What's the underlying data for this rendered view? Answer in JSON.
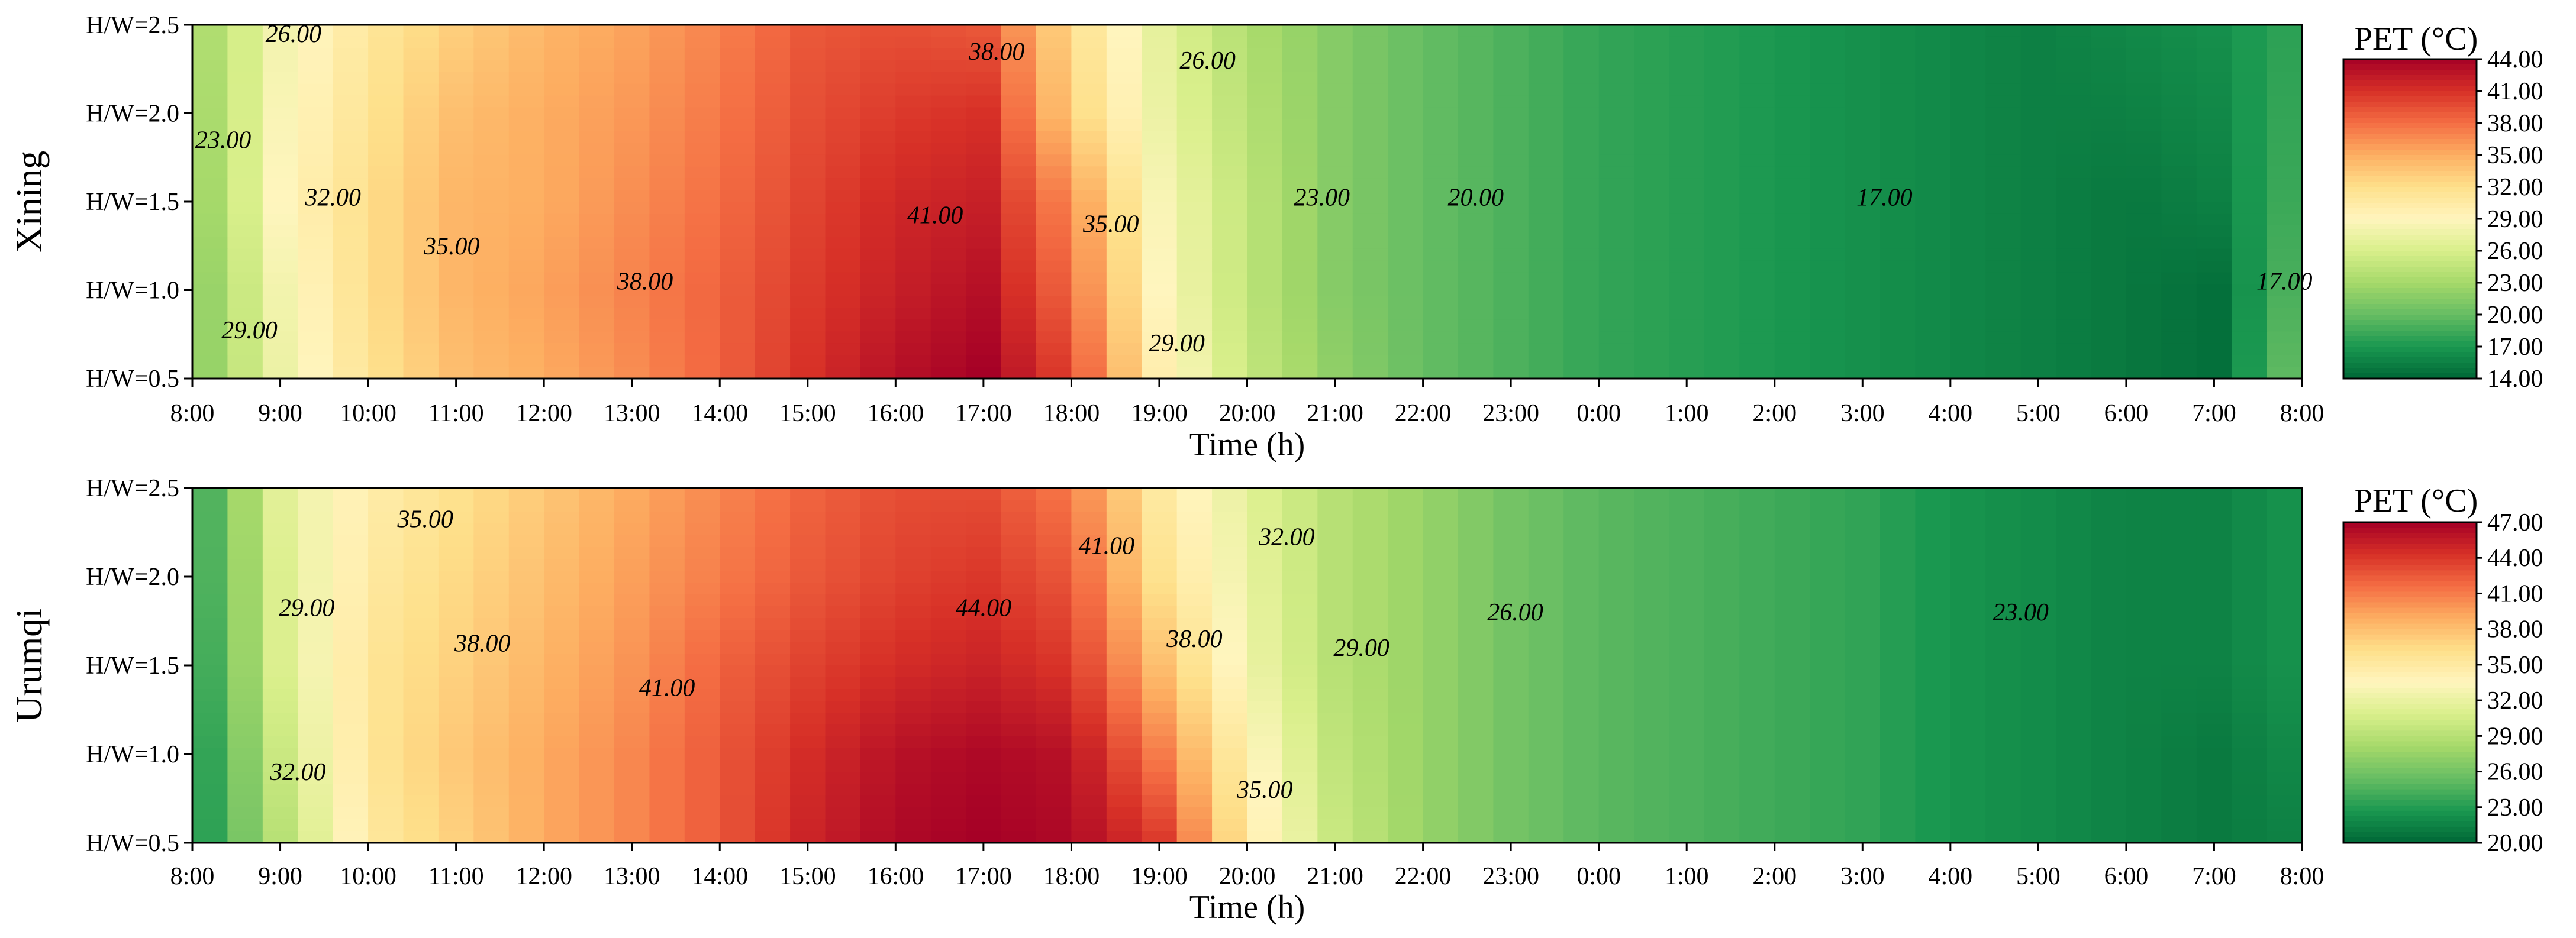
{
  "chart_data": [
    {
      "type": "heatmap",
      "city": "Xining",
      "xlabel": "Time (h)",
      "ylabel": "Xining",
      "x_ticks": [
        "8:00",
        "9:00",
        "10:00",
        "11:00",
        "12:00",
        "13:00",
        "14:00",
        "15:00",
        "16:00",
        "17:00",
        "18:00",
        "19:00",
        "20:00",
        "21:00",
        "22:00",
        "23:00",
        "0:00",
        "1:00",
        "2:00",
        "3:00",
        "4:00",
        "5:00",
        "6:00",
        "7:00",
        "8:00"
      ],
      "y_ticks": [
        "H/W=0.5",
        "H/W=1.0",
        "H/W=1.5",
        "H/W=2.0",
        "H/W=2.5"
      ],
      "rows_hw": [
        0.5,
        1.0,
        1.5,
        2.0,
        2.5
      ],
      "values": [
        [
          21,
          27.5,
          31.5,
          34,
          35,
          36.5,
          38.5,
          41,
          43,
          44,
          40,
          30,
          25,
          22,
          20,
          19,
          18,
          17.5,
          17,
          16.5,
          16,
          15.5,
          15,
          14.5,
          21
        ],
        [
          21,
          28,
          32,
          34.5,
          35.5,
          37,
          38.5,
          40.5,
          42,
          43,
          38,
          29,
          24.5,
          21.5,
          20,
          19,
          18,
          17.5,
          17,
          16.5,
          16,
          15.5,
          15,
          14.5,
          20
        ],
        [
          21.5,
          29,
          32,
          34.5,
          35,
          36.5,
          38,
          40,
          41.5,
          42,
          36.5,
          28.5,
          24.5,
          21.5,
          20,
          19,
          18,
          17.5,
          17,
          16.5,
          16,
          15.5,
          15,
          15.5,
          19
        ],
        [
          22,
          28.5,
          31.5,
          34,
          35,
          36,
          37.5,
          39.5,
          40.5,
          41,
          33,
          27.5,
          24,
          21.5,
          20,
          19,
          18,
          17.5,
          17,
          16.5,
          16,
          15.5,
          15.5,
          16,
          18.5
        ],
        [
          22.5,
          28,
          31,
          33,
          34.5,
          35.5,
          37,
          39,
          39.5,
          39,
          32,
          27,
          23.5,
          21.5,
          20,
          19,
          18,
          17.5,
          17,
          16.5,
          16,
          15.5,
          16,
          16.5,
          18
        ]
      ],
      "contour_labels": [
        "26.00",
        "23.00",
        "32.00",
        "35.00",
        "29.00",
        "38.00",
        "38.00",
        "41.00",
        "35.00",
        "29.00",
        "26.00",
        "23.00",
        "20.00",
        "17.00",
        "17.00"
      ],
      "colorbar": {
        "title": "PET (°C)",
        "min": 14.0,
        "max": 44.0,
        "ticks": [
          "44.00",
          "41.00",
          "38.00",
          "35.00",
          "32.00",
          "29.00",
          "26.00",
          "23.00",
          "20.00",
          "17.00",
          "14.00"
        ]
      }
    },
    {
      "type": "heatmap",
      "city": "Urumqi",
      "xlabel": "Time (h)",
      "ylabel": "Urumqi",
      "x_ticks": [
        "8:00",
        "9:00",
        "10:00",
        "11:00",
        "12:00",
        "13:00",
        "14:00",
        "15:00",
        "16:00",
        "17:00",
        "18:00",
        "19:00",
        "20:00",
        "21:00",
        "22:00",
        "23:00",
        "0:00",
        "1:00",
        "2:00",
        "3:00",
        "4:00",
        "5:00",
        "6:00",
        "7:00",
        "8:00"
      ],
      "y_ticks": [
        "H/W=0.5",
        "H/W=1.0",
        "H/W=1.5",
        "H/W=2.0",
        "H/W=2.5"
      ],
      "rows_hw": [
        0.5,
        1.0,
        1.5,
        2.0,
        2.5
      ],
      "values": [
        [
          22,
          29,
          35,
          37,
          39,
          40.5,
          42.5,
          45,
          46.5,
          47,
          46.5,
          44,
          35,
          30,
          27.5,
          26,
          25,
          24.5,
          24,
          23.5,
          22.5,
          22,
          21.5,
          21,
          21.5
        ],
        [
          22,
          30,
          35.5,
          37.5,
          39,
          40.5,
          42.5,
          44.5,
          46,
          46.5,
          46,
          41,
          34,
          29.5,
          27.5,
          26,
          25,
          24.5,
          24,
          23.5,
          22.5,
          22,
          21.5,
          21,
          22
        ],
        [
          22.5,
          31,
          35.5,
          37,
          38.5,
          40,
          42,
          43.5,
          44.5,
          45,
          44,
          38,
          32.5,
          29,
          27.5,
          26,
          25,
          24.5,
          24,
          23.5,
          22.5,
          22,
          21.5,
          21.5,
          22.5
        ],
        [
          23,
          31,
          35,
          36.5,
          38,
          39.5,
          41,
          42.5,
          43.5,
          44,
          42.5,
          36,
          32,
          29,
          27.5,
          26,
          25,
          24.5,
          24,
          23.5,
          22.5,
          22,
          21.5,
          21.5,
          22.5
        ],
        [
          23,
          31.5,
          34.5,
          36,
          37.5,
          39,
          40.5,
          42,
          43,
          43,
          41,
          35,
          31.5,
          29,
          27.5,
          26,
          25,
          24.5,
          24,
          23.5,
          22.5,
          22,
          21.5,
          21.5,
          22.5
        ]
      ],
      "contour_labels": [
        "35.00",
        "29.00",
        "32.00",
        "38.00",
        "41.00",
        "44.00",
        "41.00",
        "38.00",
        "35.00",
        "32.00",
        "29.00",
        "26.00",
        "23.00"
      ],
      "colorbar": {
        "title": "PET (°C)",
        "min": 20.0,
        "max": 47.0,
        "ticks": [
          "47.00",
          "44.00",
          "41.00",
          "38.00",
          "35.00",
          "32.00",
          "29.00",
          "26.00",
          "23.00",
          "20.00"
        ]
      }
    }
  ],
  "colors": {
    "scale": [
      "#006837",
      "#1a9850",
      "#66bd63",
      "#a6d96a",
      "#d9ef8b",
      "#fff5be",
      "#fee08b",
      "#fdae61",
      "#f46d43",
      "#d73027",
      "#a50026"
    ]
  }
}
